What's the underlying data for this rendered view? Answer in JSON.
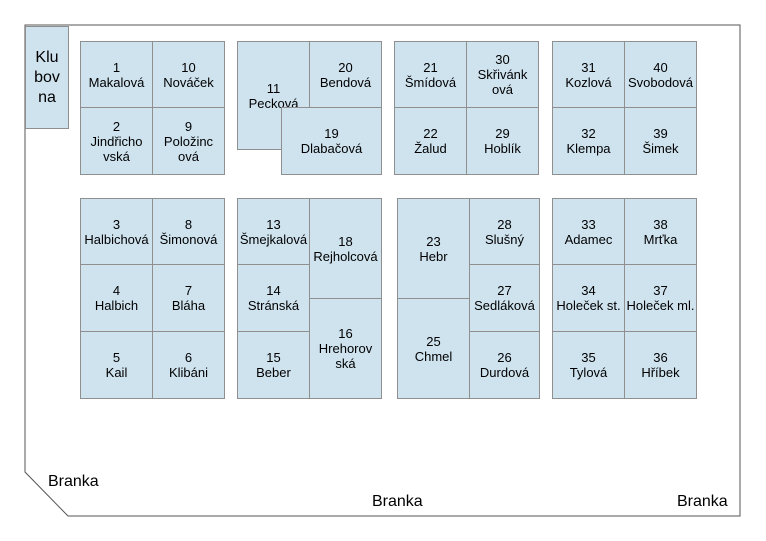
{
  "clubhouse": {
    "label": "Klubovna",
    "lines": [
      "Klu",
      "bov",
      "na"
    ]
  },
  "gates": [
    {
      "label": "Branka"
    },
    {
      "label": "Branka"
    },
    {
      "label": "Branka"
    }
  ],
  "plots": [
    {
      "num": "1",
      "lines": [
        "Makalová"
      ]
    },
    {
      "num": "10",
      "lines": [
        "Nováček"
      ]
    },
    {
      "num": "2",
      "lines": [
        "Jindřicho",
        "vská"
      ]
    },
    {
      "num": "9",
      "lines": [
        "Položinc",
        "ová"
      ]
    },
    {
      "num": "11",
      "lines": [
        "Pecková"
      ]
    },
    {
      "num": "20",
      "lines": [
        "Bendová"
      ]
    },
    {
      "num": "19",
      "lines": [
        "Dlabačová"
      ]
    },
    {
      "num": "21",
      "lines": [
        "Šmídová"
      ]
    },
    {
      "num": "30",
      "lines": [
        "Skřivánk",
        "ová"
      ]
    },
    {
      "num": "22",
      "lines": [
        "Žalud"
      ]
    },
    {
      "num": "29",
      "lines": [
        "Hoblík"
      ]
    },
    {
      "num": "31",
      "lines": [
        "Kozlová"
      ]
    },
    {
      "num": "40",
      "lines": [
        "Svobodová"
      ]
    },
    {
      "num": "32",
      "lines": [
        "Klempa"
      ]
    },
    {
      "num": "39",
      "lines": [
        "Šimek"
      ]
    },
    {
      "num": "3",
      "lines": [
        "Halbichová"
      ]
    },
    {
      "num": "8",
      "lines": [
        "Šimonová"
      ]
    },
    {
      "num": "4",
      "lines": [
        "Halbich"
      ]
    },
    {
      "num": "7",
      "lines": [
        "Bláha"
      ]
    },
    {
      "num": "5",
      "lines": [
        "Kail"
      ]
    },
    {
      "num": "6",
      "lines": [
        "Klibáni"
      ]
    },
    {
      "num": "13",
      "lines": [
        "Šmejkalová"
      ]
    },
    {
      "num": "18",
      "lines": [
        "Rejholcová"
      ]
    },
    {
      "num": "14",
      "lines": [
        "Stránská"
      ]
    },
    {
      "num": "15",
      "lines": [
        "Beber"
      ]
    },
    {
      "num": "16",
      "lines": [
        "Hrehorov",
        "ská"
      ]
    },
    {
      "num": "23",
      "lines": [
        "Hebr"
      ]
    },
    {
      "num": "28",
      "lines": [
        "Slušný"
      ]
    },
    {
      "num": "27",
      "lines": [
        "Sedláková"
      ]
    },
    {
      "num": "25",
      "lines": [
        "Chmel"
      ]
    },
    {
      "num": "26",
      "lines": [
        "Durdová"
      ]
    },
    {
      "num": "33",
      "lines": [
        "Adamec"
      ]
    },
    {
      "num": "38",
      "lines": [
        "Mrťka"
      ]
    },
    {
      "num": "34",
      "lines": [
        "Holeček st."
      ]
    },
    {
      "num": "37",
      "lines": [
        "Holeček ml."
      ]
    },
    {
      "num": "35",
      "lines": [
        "Tylová"
      ]
    },
    {
      "num": "36",
      "lines": [
        "Hříbek"
      ]
    }
  ]
}
